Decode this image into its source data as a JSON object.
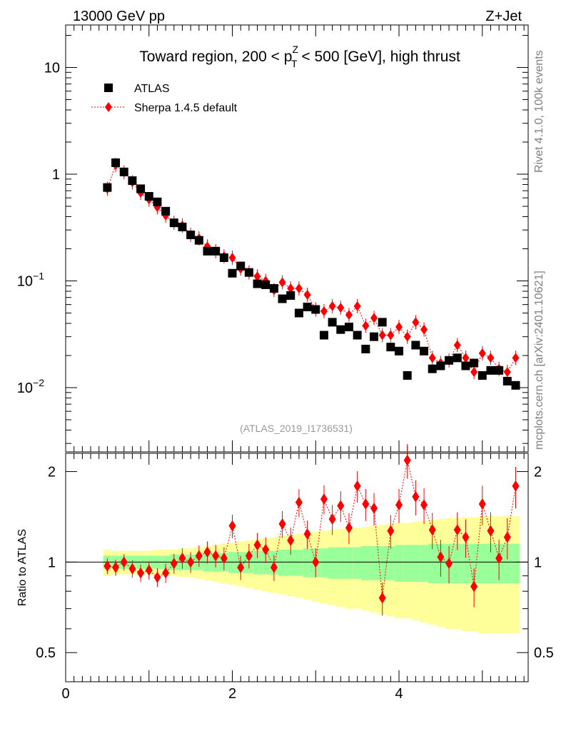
{
  "header": {
    "energy_label": "13000 GeV pp",
    "process_label": "Z+Jet"
  },
  "side_labels": {
    "rivet": "Rivet 4.1.0,  100k events",
    "mcplots": "mcplots.cern.ch [arXiv:2401.10621]"
  },
  "chart_data": [
    {
      "type": "scatter",
      "yscale": "log",
      "title_parts": {
        "pre": "Toward region, 200 < p",
        "sup": "Z",
        "sub": "T",
        "post": " < 500 [GeV], high thrust"
      },
      "xlim": [
        0,
        5.55
      ],
      "ylim": [
        0.0025,
        25
      ],
      "yticks": [
        {
          "value": 10,
          "base": "10",
          "exp": ""
        },
        {
          "value": 1,
          "base": "1",
          "exp": ""
        },
        {
          "value": 0.1,
          "base": "10",
          "exp": "−1"
        },
        {
          "value": 0.01,
          "base": "10",
          "exp": "−2"
        }
      ],
      "analysis_tag": "(ATLAS_2019_I1736531)",
      "legend": [
        {
          "name": "ATLAS",
          "marker": "square",
          "color": "#000000"
        },
        {
          "name": "Sherpa 1.4.5 default",
          "marker": "diamond",
          "color": "#ff0000",
          "line": "dotted"
        }
      ],
      "x": [
        0.5,
        0.6,
        0.7,
        0.8,
        0.9,
        1.0,
        1.1,
        1.2,
        1.3,
        1.4,
        1.5,
        1.6,
        1.7,
        1.8,
        1.9,
        2.0,
        2.1,
        2.2,
        2.3,
        2.4,
        2.5,
        2.6,
        2.7,
        2.8,
        2.9,
        3.0,
        3.1,
        3.2,
        3.3,
        3.4,
        3.5,
        3.6,
        3.7,
        3.8,
        3.9,
        4.0,
        4.1,
        4.2,
        4.3,
        4.4,
        4.5,
        4.6,
        4.7,
        4.8,
        4.9,
        5.0,
        5.1,
        5.2,
        5.3,
        5.4
      ],
      "series": [
        {
          "name": "ATLAS",
          "values": [
            0.75,
            1.28,
            1.05,
            0.87,
            0.73,
            0.62,
            0.55,
            0.45,
            0.35,
            0.32,
            0.27,
            0.24,
            0.19,
            0.19,
            0.165,
            0.118,
            0.138,
            0.12,
            0.094,
            0.092,
            0.085,
            0.068,
            0.073,
            0.05,
            0.057,
            0.054,
            0.031,
            0.041,
            0.035,
            0.037,
            0.031,
            0.023,
            0.03,
            0.041,
            0.024,
            0.022,
            0.013,
            0.025,
            0.022,
            0.015,
            0.016,
            0.018,
            0.019,
            0.016,
            0.017,
            0.013,
            0.0145,
            0.0145,
            0.0115,
            0.0105
          ]
        },
        {
          "name": "Sherpa 1.4.5 default",
          "values": [
            0.73,
            1.22,
            1.04,
            0.84,
            0.67,
            0.58,
            0.49,
            0.41,
            0.35,
            0.33,
            0.27,
            0.25,
            0.21,
            0.19,
            0.17,
            0.165,
            0.13,
            0.12,
            0.11,
            0.1,
            0.082,
            0.097,
            0.085,
            0.085,
            0.074,
            0.054,
            0.052,
            0.058,
            0.056,
            0.048,
            0.058,
            0.038,
            0.045,
            0.031,
            0.031,
            0.037,
            0.03,
            0.041,
            0.035,
            0.019,
            0.017,
            0.018,
            0.025,
            0.019,
            0.014,
            0.021,
            0.019,
            0.015,
            0.014,
            0.019
          ]
        }
      ]
    },
    {
      "type": "scatter",
      "ylabel": "Ratio to ATLAS",
      "xlim": [
        0,
        5.55
      ],
      "ylim": [
        0.4,
        2.3
      ],
      "yticks": [
        "0.5",
        "1",
        "2"
      ],
      "xticks": [
        "0",
        "2",
        "4"
      ],
      "x": [
        0.5,
        0.6,
        0.7,
        0.8,
        0.9,
        1.0,
        1.1,
        1.2,
        1.3,
        1.4,
        1.5,
        1.6,
        1.7,
        1.8,
        1.9,
        2.0,
        2.1,
        2.2,
        2.3,
        2.4,
        2.5,
        2.6,
        2.7,
        2.8,
        2.9,
        3.0,
        3.1,
        3.2,
        3.3,
        3.4,
        3.5,
        3.6,
        3.7,
        3.8,
        3.9,
        4.0,
        4.1,
        4.2,
        4.3,
        4.4,
        4.5,
        4.6,
        4.7,
        4.8,
        4.9,
        5.0,
        5.1,
        5.2,
        5.3,
        5.4
      ],
      "series": [
        {
          "name": "Sherpa 1.4.5 default / ATLAS",
          "values": [
            0.97,
            0.96,
            1.0,
            0.95,
            0.92,
            0.94,
            0.89,
            0.92,
            0.99,
            1.03,
            1.0,
            1.05,
            1.08,
            1.05,
            1.03,
            1.32,
            0.96,
            1.05,
            1.14,
            1.1,
            0.96,
            1.34,
            1.18,
            1.58,
            1.24,
            1.0,
            1.62,
            1.39,
            1.54,
            1.3,
            1.79,
            1.56,
            1.51,
            0.76,
            1.27,
            1.55,
            2.18,
            1.65,
            1.55,
            1.28,
            1.04,
            0.99,
            1.28,
            1.21,
            0.83,
            1.56,
            1.27,
            1.03,
            1.21,
            1.79
          ]
        }
      ],
      "bands": {
        "stat": [
          0.05,
          0.05,
          0.05,
          0.05,
          0.05,
          0.05,
          0.05,
          0.05,
          0.06,
          0.06,
          0.06,
          0.06,
          0.07,
          0.07,
          0.07,
          0.08,
          0.08,
          0.08,
          0.09,
          0.09,
          0.09,
          0.1,
          0.1,
          0.1,
          0.11,
          0.11,
          0.11,
          0.12,
          0.12,
          0.12,
          0.12,
          0.13,
          0.13,
          0.13,
          0.13,
          0.14,
          0.14,
          0.14,
          0.14,
          0.15,
          0.15,
          0.15,
          0.15,
          0.15,
          0.15,
          0.15,
          0.15,
          0.15,
          0.15,
          0.15
        ],
        "total": [
          0.1,
          0.09,
          0.09,
          0.09,
          0.09,
          0.09,
          0.1,
          0.1,
          0.1,
          0.11,
          0.11,
          0.12,
          0.13,
          0.14,
          0.15,
          0.16,
          0.17,
          0.18,
          0.19,
          0.2,
          0.21,
          0.22,
          0.23,
          0.24,
          0.25,
          0.26,
          0.27,
          0.28,
          0.29,
          0.3,
          0.3,
          0.31,
          0.32,
          0.33,
          0.34,
          0.35,
          0.35,
          0.36,
          0.37,
          0.38,
          0.39,
          0.4,
          0.4,
          0.41,
          0.41,
          0.42,
          0.42,
          0.42,
          0.42,
          0.42
        ]
      }
    }
  ]
}
